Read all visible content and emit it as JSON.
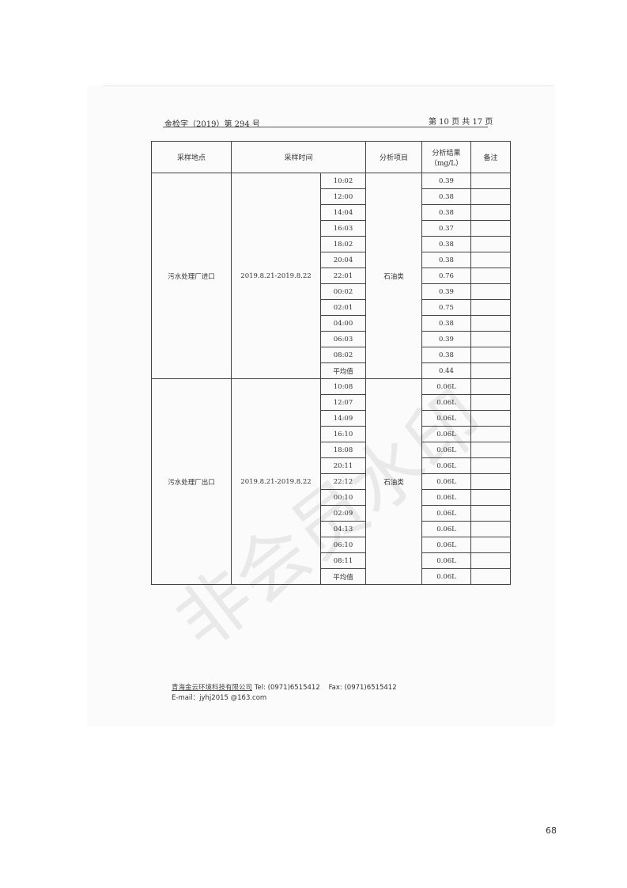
{
  "header": {
    "doc_no": "金检字（2019）第 294 号",
    "page_info": "第 10 页 共 17 页"
  },
  "table": {
    "columns": [
      "采样地点",
      "采样时间",
      "分析项目",
      "分析结果\n（mg/L）",
      "备注"
    ],
    "groups": [
      {
        "location": "污水处理厂进口",
        "date": "2019.8.21-2019.8.22",
        "item": "石油类",
        "rows": [
          [
            "10:02",
            "0.39"
          ],
          [
            "12:00",
            "0.38"
          ],
          [
            "14:04",
            "0.38"
          ],
          [
            "16:03",
            "0.37"
          ],
          [
            "18:02",
            "0.38"
          ],
          [
            "20:04",
            "0.38"
          ],
          [
            "22:01",
            "0.76"
          ],
          [
            "00:02",
            "0.39"
          ],
          [
            "02:01",
            "0.75"
          ],
          [
            "04:00",
            "0.38"
          ],
          [
            "06:03",
            "0.39"
          ],
          [
            "08:02",
            "0.38"
          ],
          [
            "平均值",
            "0.44"
          ]
        ]
      },
      {
        "location": "污水处理厂出口",
        "date": "2019.8.21-2019.8.22",
        "item": "石油类",
        "rows": [
          [
            "10:08",
            "0.06L"
          ],
          [
            "12:07",
            "0.06L"
          ],
          [
            "14:09",
            "0.06L"
          ],
          [
            "16:10",
            "0.06L"
          ],
          [
            "18:08",
            "0.06L"
          ],
          [
            "20:11",
            "0.06L"
          ],
          [
            "22:12",
            "0.06L"
          ],
          [
            "00:10",
            "0.06L"
          ],
          [
            "02:09",
            "0.06L"
          ],
          [
            "04:13",
            "0.06L"
          ],
          [
            "06:10",
            "0.06L"
          ],
          [
            "08:11",
            "0.06L"
          ],
          [
            "平均值",
            "0.06L"
          ]
        ]
      }
    ]
  },
  "footer": {
    "company": "青海金云环境科技有限公司",
    "tel": "Tel:   (0971)6515412",
    "fax": "Fax:   (0971)6515412",
    "email": "E-mail：jyhj2015 @163.com"
  },
  "watermark": "非会员水印",
  "page_number": "68"
}
